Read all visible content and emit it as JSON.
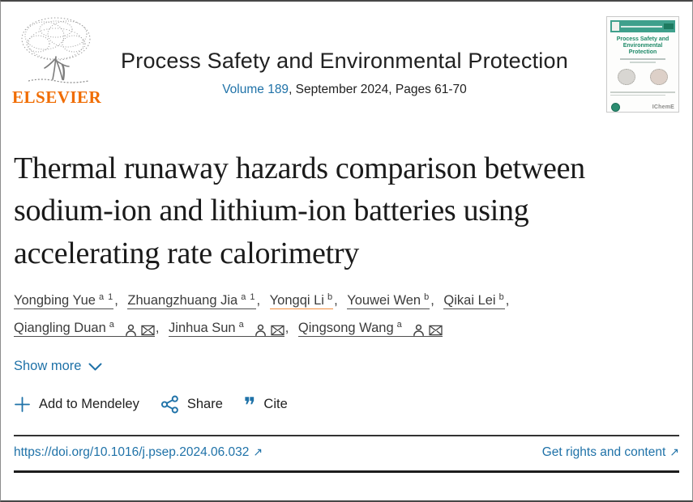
{
  "header": {
    "journal_title": "Process Safety and Environmental Protection",
    "volume_link": "Volume 189",
    "issue_info": ", September 2024, Pages 61-70"
  },
  "logo": {
    "wordmark": "ELSEVIER"
  },
  "cover": {
    "title": "Process Safety and Environmental Protection",
    "publisher": "IChemE"
  },
  "article": {
    "title": "Thermal runaway hazards comparison between sodium-ion and lithium-ion batteries using accelerating rate calorimetry"
  },
  "authors": [
    {
      "name": "Yongbing Yue",
      "sup": "a 1",
      "corresponding": false,
      "highlight": false
    },
    {
      "name": "Zhuangzhuang Jia",
      "sup": "a 1",
      "corresponding": false,
      "highlight": false
    },
    {
      "name": "Yongqi Li",
      "sup": "b",
      "corresponding": false,
      "highlight": true
    },
    {
      "name": "Youwei Wen",
      "sup": "b",
      "corresponding": false,
      "highlight": false
    },
    {
      "name": "Qikai Lei",
      "sup": "b",
      "corresponding": false,
      "highlight": false
    },
    {
      "name": "Qiangling Duan",
      "sup": "a",
      "corresponding": true,
      "highlight": false
    },
    {
      "name": "Jinhua Sun",
      "sup": "a",
      "corresponding": true,
      "highlight": false
    },
    {
      "name": "Qingsong Wang",
      "sup": "a",
      "corresponding": true,
      "highlight": false
    }
  ],
  "show_more": {
    "label": "Show more"
  },
  "actions": {
    "mendeley": "Add to Mendeley",
    "share": "Share",
    "cite": "Cite"
  },
  "footer": {
    "doi": "https://doi.org/10.1016/j.psep.2024.06.032",
    "rights": "Get rights and content"
  },
  "icons": {
    "external_arrow": "↗",
    "cite_glyph": "❞"
  },
  "colors": {
    "link_blue": "#1f72a8",
    "elsevier_orange": "#f06c00",
    "highlight_orange": "#ef8c3f",
    "cover_green": "#3fa08c"
  }
}
